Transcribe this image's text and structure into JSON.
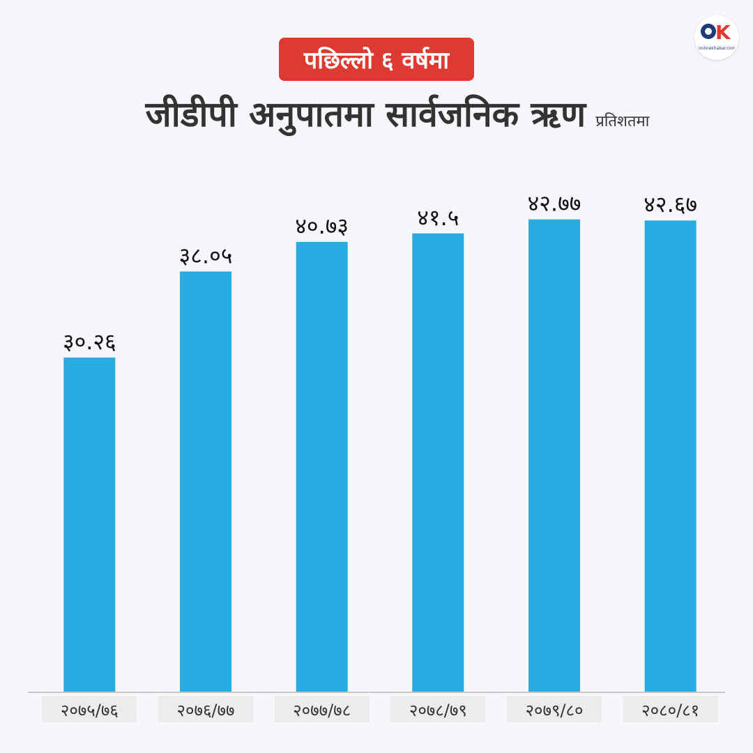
{
  "header": {
    "badge": "पछिल्लो ६ वर्षमा",
    "title": "जीडीपी अनुपातमा सार्वजनिक ऋण",
    "unit": "प्रतिशतमा"
  },
  "logo": {
    "icon": "onlinekhabar-logo",
    "mark_o": "O",
    "mark_k": "K",
    "text": "onlinekhabar.com"
  },
  "colors": {
    "bar": "#29abe2",
    "badge": "#df3a32",
    "text": "#333333",
    "background": "#f5f7fb",
    "tick_bg": "#ececec"
  },
  "chart_data": {
    "type": "bar",
    "title": "जीडीपी अनुपातमा सार्वजनिक ऋण",
    "ylabel": "प्रतिशतमा",
    "xlabel": "",
    "categories": [
      "२०७५/७६",
      "२०७६/७७",
      "२०७७/७८",
      "२०७८/७९",
      "२०७९/८०",
      "२०८०/८१"
    ],
    "values": [
      30.26,
      38.05,
      40.73,
      41.5,
      42.77,
      42.67
    ],
    "value_labels": [
      "३०.२६",
      "३८.०५",
      "४०.७३",
      "४१.५",
      "४२.७७",
      "४२.६७"
    ],
    "ylim": [
      0,
      49
    ],
    "grid": false,
    "legend": "none"
  }
}
